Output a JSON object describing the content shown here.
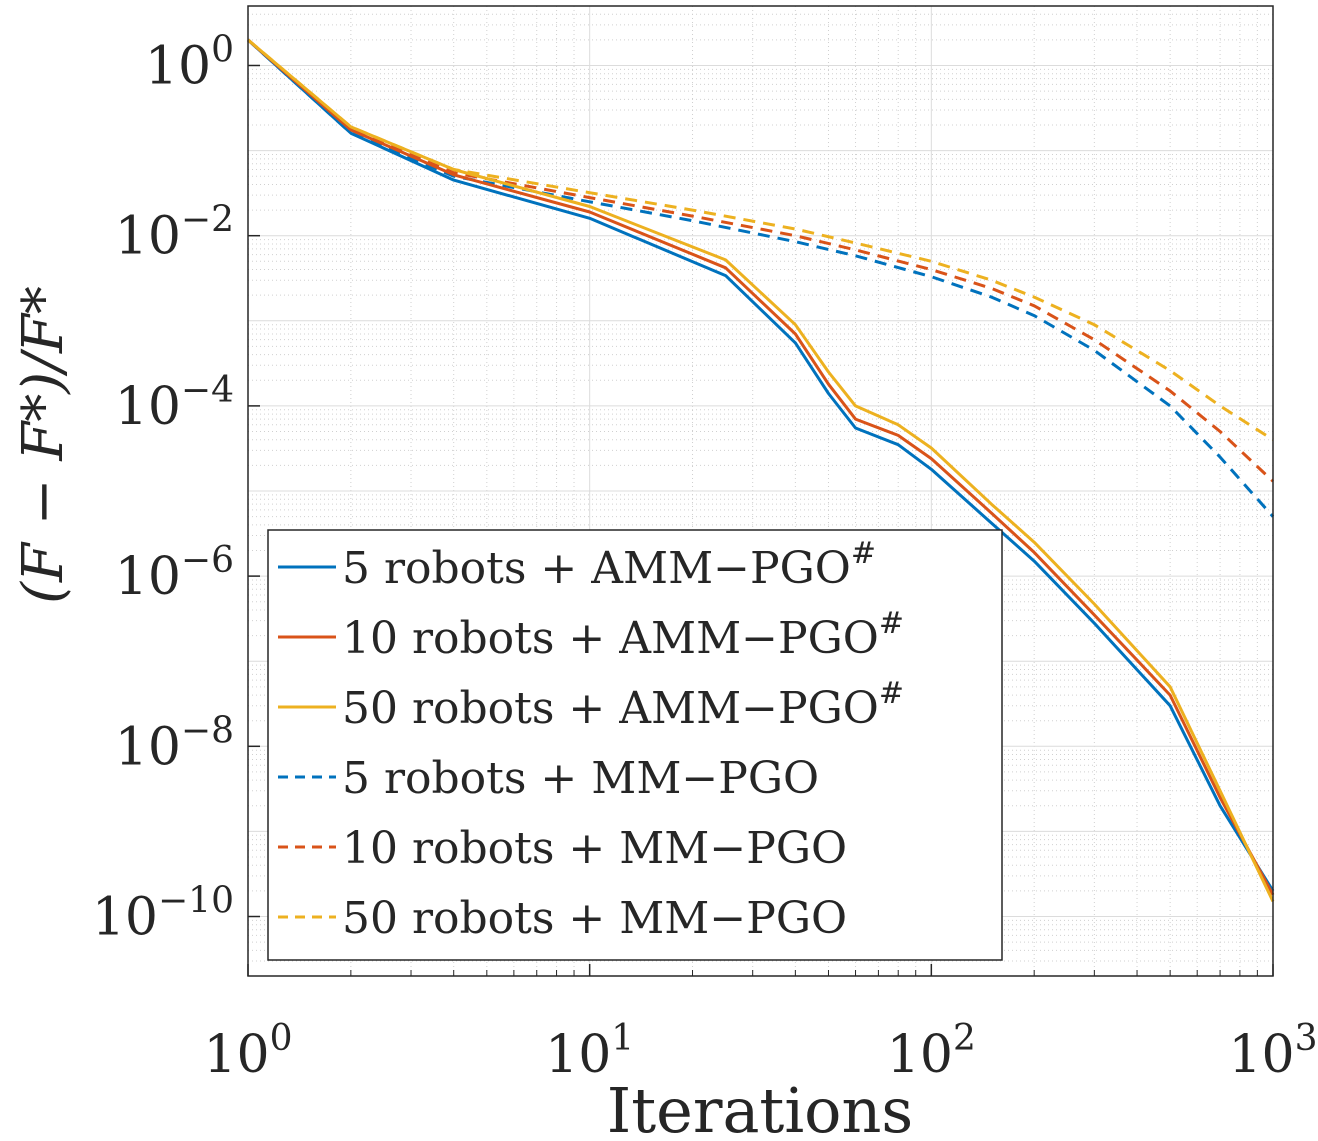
{
  "chart_data": {
    "type": "line",
    "title": "",
    "xlabel": "Iterations",
    "ylabel": "(F − F*)/F*",
    "xscale": "log",
    "yscale": "log",
    "xlim": [
      1,
      1000
    ],
    "ylim": [
      2e-11,
      5
    ],
    "grid": true,
    "minor_grid": true,
    "legend_position": "bottom-left",
    "x_ticks": [
      {
        "value": 1,
        "base": "10",
        "exp": "0"
      },
      {
        "value": 10,
        "base": "10",
        "exp": "1"
      },
      {
        "value": 100,
        "base": "10",
        "exp": "2"
      },
      {
        "value": 1000,
        "base": "10",
        "exp": "3"
      }
    ],
    "y_ticks": [
      {
        "value": 1,
        "base": "10",
        "exp": "0"
      },
      {
        "value": 0.01,
        "base": "10",
        "exp": "−2"
      },
      {
        "value": 0.0001,
        "base": "10",
        "exp": "−4"
      },
      {
        "value": 1e-06,
        "base": "10",
        "exp": "−6"
      },
      {
        "value": 1e-08,
        "base": "10",
        "exp": "−8"
      },
      {
        "value": 1e-10,
        "base": "10",
        "exp": "−10"
      }
    ],
    "series": [
      {
        "name": "5 robots + AMM−PGO",
        "name_sup": "#",
        "color": "#0072BD",
        "dash": "solid",
        "x": [
          1,
          2,
          4,
          10,
          25,
          40,
          50,
          60,
          80,
          100,
          150,
          200,
          300,
          500,
          700,
          1000
        ],
        "y": [
          2,
          0.16,
          0.045,
          0.016,
          0.0034,
          0.00055,
          0.00014,
          5.5e-05,
          3.5e-05,
          1.8e-05,
          4.2e-06,
          1.5e-06,
          2.8e-07,
          3e-08,
          2e-09,
          2e-10
        ]
      },
      {
        "name": "10 robots + AMM−PGO",
        "name_sup": "#",
        "color": "#D95319",
        "dash": "solid",
        "x": [
          1,
          2,
          4,
          10,
          25,
          40,
          50,
          60,
          80,
          100,
          150,
          200,
          300,
          500,
          700,
          1000
        ],
        "y": [
          2,
          0.175,
          0.052,
          0.019,
          0.0042,
          0.0007,
          0.00018,
          7e-05,
          4.5e-05,
          2.4e-05,
          5.5e-06,
          1.9e-06,
          3.5e-07,
          4e-08,
          2.5e-09,
          1.8e-10
        ]
      },
      {
        "name": "50 robots + AMM−PGO",
        "name_sup": "#",
        "color": "#EDB120",
        "dash": "solid",
        "x": [
          1,
          2,
          4,
          10,
          25,
          40,
          50,
          60,
          80,
          100,
          150,
          200,
          300,
          500,
          700,
          1000
        ],
        "y": [
          2,
          0.19,
          0.06,
          0.022,
          0.0052,
          0.0009,
          0.00025,
          0.0001,
          6e-05,
          3.2e-05,
          7e-06,
          2.5e-06,
          4.7e-07,
          5e-08,
          3e-09,
          1.5e-10
        ]
      },
      {
        "name": "5 robots + MM−PGO",
        "name_sup": "",
        "color": "#0072BD",
        "dash": "dashed",
        "x": [
          1,
          2,
          4,
          10,
          20,
          40,
          60,
          100,
          150,
          200,
          300,
          500,
          700,
          1000
        ],
        "y": [
          2,
          0.16,
          0.05,
          0.025,
          0.015,
          0.0085,
          0.0058,
          0.0033,
          0.0019,
          0.00115,
          0.00045,
          0.0001,
          2.5e-05,
          5e-06
        ]
      },
      {
        "name": "10 robots + MM−PGO",
        "name_sup": "",
        "color": "#D95319",
        "dash": "dashed",
        "x": [
          1,
          2,
          4,
          10,
          20,
          40,
          60,
          100,
          150,
          200,
          300,
          500,
          700,
          1000
        ],
        "y": [
          2,
          0.175,
          0.055,
          0.028,
          0.017,
          0.01,
          0.0068,
          0.004,
          0.0024,
          0.0015,
          0.0006,
          0.00015,
          5e-05,
          1.3e-05
        ]
      },
      {
        "name": "50 robots + MM−PGO",
        "name_sup": "",
        "color": "#EDB120",
        "dash": "dashed",
        "x": [
          1,
          2,
          4,
          10,
          20,
          40,
          60,
          100,
          150,
          200,
          300,
          500,
          700,
          1000
        ],
        "y": [
          2,
          0.19,
          0.06,
          0.032,
          0.02,
          0.012,
          0.0082,
          0.005,
          0.003,
          0.0019,
          0.0009,
          0.00026,
          0.0001,
          4e-05
        ]
      }
    ]
  }
}
